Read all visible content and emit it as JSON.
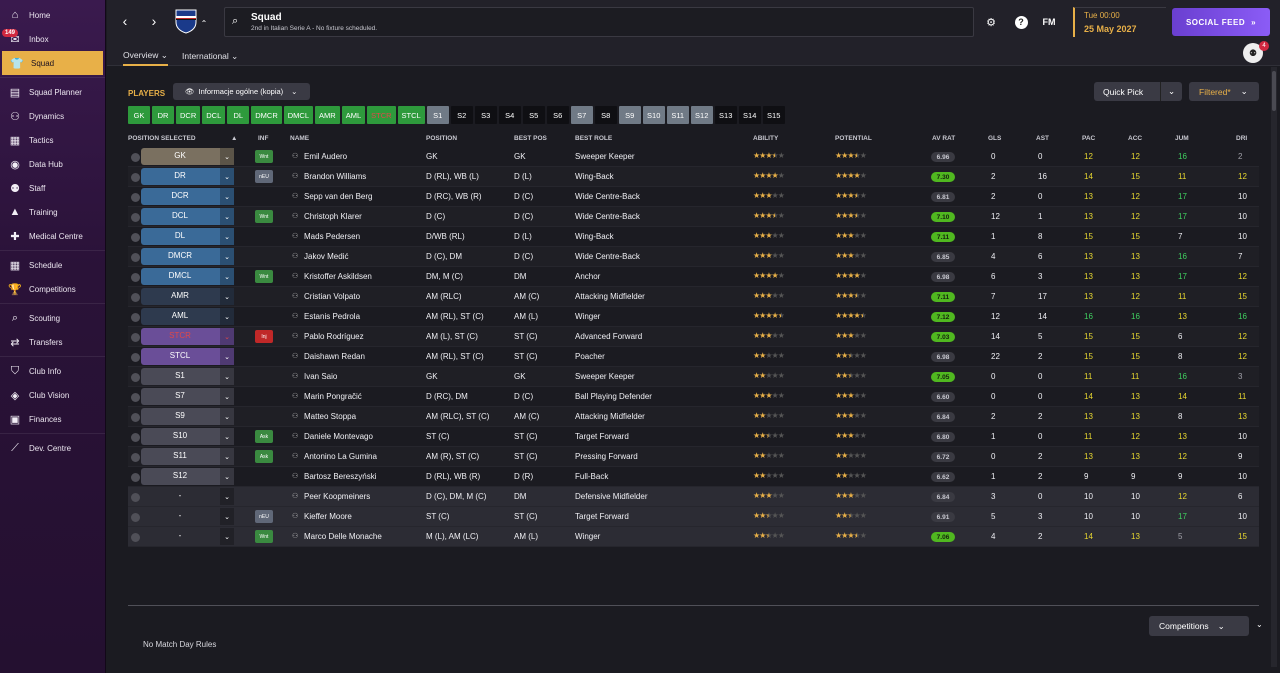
{
  "sidebar": {
    "items": [
      {
        "label": "Home",
        "icon": "home-icon",
        "glyph": "⌂"
      },
      {
        "label": "Inbox",
        "icon": "inbox-icon",
        "glyph": "✉",
        "badge": "149"
      },
      {
        "label": "Squad",
        "icon": "shirt-icon",
        "glyph": "👕",
        "active": true
      },
      {
        "label": "Squad Planner",
        "icon": "planner-icon",
        "glyph": "▤"
      },
      {
        "label": "Dynamics",
        "icon": "dynamics-icon",
        "glyph": "⚇"
      },
      {
        "label": "Tactics",
        "icon": "tactics-icon",
        "glyph": "▦"
      },
      {
        "label": "Data Hub",
        "icon": "datahub-icon",
        "glyph": "◉"
      },
      {
        "label": "Staff",
        "icon": "staff-icon",
        "glyph": "⚉"
      },
      {
        "label": "Training",
        "icon": "training-icon",
        "glyph": "▲"
      },
      {
        "label": "Medical Centre",
        "icon": "medical-icon",
        "glyph": "✚"
      },
      {
        "label": "Schedule",
        "icon": "calendar-icon",
        "glyph": "▦"
      },
      {
        "label": "Competitions",
        "icon": "trophy-icon",
        "glyph": "🏆"
      },
      {
        "label": "Scouting",
        "icon": "scouting-icon",
        "glyph": "⌕"
      },
      {
        "label": "Transfers",
        "icon": "transfers-icon",
        "glyph": "⇄"
      },
      {
        "label": "Club Info",
        "icon": "shield-icon",
        "glyph": "⛉"
      },
      {
        "label": "Club Vision",
        "icon": "vision-icon",
        "glyph": "◈"
      },
      {
        "label": "Finances",
        "icon": "finances-icon",
        "glyph": "▣"
      },
      {
        "label": "Dev. Centre",
        "icon": "dev-centre-icon",
        "glyph": "⟋"
      }
    ]
  },
  "header": {
    "title": "Squad",
    "subtitle": "2nd in Italian Serie A - No fixture scheduled.",
    "time": "Tue 00:00",
    "date": "25 May 2027",
    "social_feed": "SOCIAL FEED",
    "fm_label": "FM",
    "help_label": "?",
    "avatar_badge": "4"
  },
  "tabs": [
    {
      "label": "Overview ⌄"
    },
    {
      "label": "International ⌄"
    }
  ],
  "toolbar": {
    "players_title": "PLAYERS",
    "view_label": "Informacje ogólne (kopia)",
    "quick_pick": "Quick Pick",
    "filtered": "Filtered*"
  },
  "position_buttons": [
    {
      "label": "GK",
      "style": "g"
    },
    {
      "label": "DR",
      "style": "g"
    },
    {
      "label": "DCR",
      "style": "g"
    },
    {
      "label": "DCL",
      "style": "g"
    },
    {
      "label": "DL",
      "style": "g"
    },
    {
      "label": "DMCR",
      "style": "g"
    },
    {
      "label": "DMCL",
      "style": "g"
    },
    {
      "label": "AMR",
      "style": "g"
    },
    {
      "label": "AML",
      "style": "g"
    },
    {
      "label": "STCR",
      "style": "g red"
    },
    {
      "label": "STCL",
      "style": "g"
    },
    {
      "label": "S1",
      "style": "gr"
    },
    {
      "label": "S2",
      "style": "dk"
    },
    {
      "label": "S3",
      "style": "dk"
    },
    {
      "label": "S4",
      "style": "dk"
    },
    {
      "label": "S5",
      "style": "dk"
    },
    {
      "label": "S6",
      "style": "dk"
    },
    {
      "label": "S7",
      "style": "gr"
    },
    {
      "label": "S8",
      "style": "dk"
    },
    {
      "label": "S9",
      "style": "gr"
    },
    {
      "label": "S10",
      "style": "gr"
    },
    {
      "label": "S11",
      "style": "gr"
    },
    {
      "label": "S12",
      "style": "gr"
    },
    {
      "label": "S13",
      "style": "dk"
    },
    {
      "label": "S14",
      "style": "dk"
    },
    {
      "label": "S15",
      "style": "dk"
    }
  ],
  "columns": {
    "position_selected": "POSITION SELECTED",
    "inf": "INF",
    "name": "NAME",
    "position": "POSITION",
    "best_pos": "BEST POS",
    "best_role": "BEST ROLE",
    "ability": "ABILITY",
    "potential": "POTENTIAL",
    "av_rat": "AV RAT",
    "gls": "GLS",
    "ast": "AST",
    "pac": "PAC",
    "acc": "ACC",
    "jum": "JUM",
    "dri": "DRI"
  },
  "players": [
    {
      "sel": "GK",
      "selcolor": "#7a7060",
      "inf": "Wnt",
      "infcolor": "#3a8a40",
      "name": "Emil Audero",
      "position": "GK",
      "best_pos": "GK",
      "role": "Sweeper Keeper",
      "ability": 3.5,
      "potential": 3.5,
      "avrat": "6.96",
      "avgreen": false,
      "gls": "0",
      "ast": "0",
      "pac": "12",
      "pacc": "yel",
      "acc": "12",
      "accc": "yel",
      "jum": "16",
      "jumc": "grn",
      "dri": "2",
      "dric": "gry"
    },
    {
      "sel": "DR",
      "selcolor": "#3a6a98",
      "inf": "nEU",
      "infcolor": "#606878",
      "name": "Brandon Williams",
      "position": "D (RL), WB (L)",
      "best_pos": "D (L)",
      "role": "Wing-Back",
      "ability": 4,
      "potential": 4,
      "avrat": "7.30",
      "avgreen": true,
      "gls": "2",
      "ast": "16",
      "pac": "14",
      "pacc": "yel",
      "acc": "15",
      "accc": "yel",
      "jum": "11",
      "jumc": "yel",
      "dri": "12",
      "dric": "yel"
    },
    {
      "sel": "DCR",
      "selcolor": "#3a6a98",
      "inf": "",
      "infcolor": "",
      "name": "Sepp van den Berg",
      "position": "D (RC), WB (R)",
      "best_pos": "D (C)",
      "role": "Wide Centre-Back",
      "ability": 3,
      "potential": 3.5,
      "avrat": "6.81",
      "avgreen": false,
      "gls": "2",
      "ast": "0",
      "pac": "13",
      "pacc": "yel",
      "acc": "12",
      "accc": "yel",
      "jum": "17",
      "jumc": "grn",
      "dri": "10",
      "dric": "wht"
    },
    {
      "sel": "DCL",
      "selcolor": "#3a6a98",
      "inf": "Wnt",
      "infcolor": "#3a8a40",
      "name": "Christoph Klarer",
      "position": "D (C)",
      "best_pos": "D (C)",
      "role": "Wide Centre-Back",
      "ability": 3.5,
      "potential": 3.5,
      "avrat": "7.10",
      "avgreen": true,
      "gls": "12",
      "ast": "1",
      "pac": "13",
      "pacc": "yel",
      "acc": "12",
      "accc": "yel",
      "jum": "17",
      "jumc": "grn",
      "dri": "10",
      "dric": "wht"
    },
    {
      "sel": "DL",
      "selcolor": "#3a6a98",
      "inf": "",
      "infcolor": "",
      "name": "Mads Pedersen",
      "position": "D/WB (RL)",
      "best_pos": "D (L)",
      "role": "Wing-Back",
      "ability": 3,
      "potential": 3,
      "avrat": "7.11",
      "avgreen": true,
      "gls": "1",
      "ast": "8",
      "pac": "15",
      "pacc": "yel",
      "acc": "15",
      "accc": "yel",
      "jum": "7",
      "jumc": "wht",
      "dri": "10",
      "dric": "wht"
    },
    {
      "sel": "DMCR",
      "selcolor": "#3a6a98",
      "inf": "",
      "infcolor": "",
      "name": "Jakov Medić",
      "position": "D (C), DM",
      "best_pos": "D (C)",
      "role": "Wide Centre-Back",
      "ability": 3,
      "potential": 3,
      "avrat": "6.85",
      "avgreen": false,
      "gls": "4",
      "ast": "6",
      "pac": "13",
      "pacc": "yel",
      "acc": "13",
      "accc": "yel",
      "jum": "16",
      "jumc": "grn",
      "dri": "7",
      "dric": "wht"
    },
    {
      "sel": "DMCL",
      "selcolor": "#3a6a98",
      "inf": "Wnt",
      "infcolor": "#3a8a40",
      "name": "Kristoffer Askildsen",
      "position": "DM, M (C)",
      "best_pos": "DM",
      "role": "Anchor",
      "ability": 4,
      "potential": 4,
      "avrat": "6.98",
      "avgreen": false,
      "gls": "6",
      "ast": "3",
      "pac": "13",
      "pacc": "yel",
      "acc": "13",
      "accc": "yel",
      "jum": "17",
      "jumc": "grn",
      "dri": "12",
      "dric": "yel"
    },
    {
      "sel": "AMR",
      "selcolor": "#2e3a4e",
      "inf": "",
      "infcolor": "",
      "name": "Cristian Volpato",
      "position": "AM (RLC)",
      "best_pos": "AM (C)",
      "role": "Attacking Midfielder",
      "ability": 3,
      "potential": 3.5,
      "avrat": "7.11",
      "avgreen": true,
      "gls": "7",
      "ast": "17",
      "pac": "13",
      "pacc": "yel",
      "acc": "12",
      "accc": "yel",
      "jum": "11",
      "jumc": "yel",
      "dri": "15",
      "dric": "yel"
    },
    {
      "sel": "AML",
      "selcolor": "#2e3a4e",
      "inf": "",
      "infcolor": "",
      "name": "Estanis Pedrola",
      "position": "AM (RL), ST (C)",
      "best_pos": "AM (L)",
      "role": "Winger",
      "ability": 4.5,
      "potential": 4.5,
      "avrat": "7.12",
      "avgreen": true,
      "gls": "12",
      "ast": "14",
      "pac": "16",
      "pacc": "grn",
      "acc": "16",
      "accc": "grn",
      "jum": "13",
      "jumc": "yel",
      "dri": "16",
      "dric": "grn"
    },
    {
      "sel": "STCR",
      "selcolor": "#6a4e98",
      "inf": "Inj",
      "infcolor": "#c02828",
      "name": "Pablo Rodríguez",
      "position": "AM (L), ST (C)",
      "best_pos": "ST (C)",
      "role": "Advanced Forward",
      "ability": 3,
      "potential": 3,
      "avrat": "7.03",
      "avgreen": true,
      "gls": "14",
      "ast": "5",
      "pac": "15",
      "pacc": "yel",
      "acc": "15",
      "accc": "yel",
      "jum": "6",
      "jumc": "wht",
      "dri": "12",
      "dric": "yel"
    },
    {
      "sel": "STCL",
      "selcolor": "#6a4e98",
      "inf": "",
      "infcolor": "",
      "name": "Daishawn Redan",
      "position": "AM (RL), ST (C)",
      "best_pos": "ST (C)",
      "role": "Poacher",
      "ability": 2,
      "potential": 2.5,
      "avrat": "6.98",
      "avgreen": false,
      "gls": "22",
      "ast": "2",
      "pac": "15",
      "pacc": "yel",
      "acc": "15",
      "accc": "yel",
      "jum": "8",
      "jumc": "wht",
      "dri": "12",
      "dric": "yel"
    },
    {
      "sel": "S1",
      "selcolor": "#4a4a56",
      "inf": "",
      "infcolor": "",
      "name": "Ivan Saio",
      "position": "GK",
      "best_pos": "GK",
      "role": "Sweeper Keeper",
      "ability": 2,
      "potential": 2.5,
      "avrat": "7.05",
      "avgreen": true,
      "gls": "0",
      "ast": "0",
      "pac": "11",
      "pacc": "yel",
      "acc": "11",
      "accc": "yel",
      "jum": "16",
      "jumc": "grn",
      "dri": "3",
      "dric": "gry"
    },
    {
      "sel": "S7",
      "selcolor": "#4a4a56",
      "inf": "",
      "infcolor": "",
      "name": "Marin Pongračić",
      "position": "D (RC), DM",
      "best_pos": "D (C)",
      "role": "Ball Playing Defender",
      "ability": 3,
      "potential": 3,
      "avrat": "6.60",
      "avgreen": false,
      "gls": "0",
      "ast": "0",
      "pac": "14",
      "pacc": "yel",
      "acc": "13",
      "accc": "yel",
      "jum": "14",
      "jumc": "yel",
      "dri": "11",
      "dric": "yel"
    },
    {
      "sel": "S9",
      "selcolor": "#4a4a56",
      "inf": "",
      "infcolor": "",
      "name": "Matteo Stoppa",
      "position": "AM (RLC), ST (C)",
      "best_pos": "AM (C)",
      "role": "Attacking Midfielder",
      "ability": 2,
      "potential": 3,
      "avrat": "6.84",
      "avgreen": false,
      "gls": "2",
      "ast": "2",
      "pac": "13",
      "pacc": "yel",
      "acc": "13",
      "accc": "yel",
      "jum": "8",
      "jumc": "wht",
      "dri": "13",
      "dric": "yel"
    },
    {
      "sel": "S10",
      "selcolor": "#4a4a56",
      "inf": "Ask",
      "infcolor": "#3a8a40",
      "name": "Daniele Montevago",
      "position": "ST (C)",
      "best_pos": "ST (C)",
      "role": "Target Forward",
      "ability": 2.5,
      "potential": 3,
      "avrat": "6.80",
      "avgreen": false,
      "gls": "1",
      "ast": "0",
      "pac": "11",
      "pacc": "yel",
      "acc": "12",
      "accc": "yel",
      "jum": "13",
      "jumc": "yel",
      "dri": "10",
      "dric": "wht"
    },
    {
      "sel": "S11",
      "selcolor": "#4a4a56",
      "inf": "Ask",
      "infcolor": "#3a8a40",
      "name": "Antonino La Gumina",
      "position": "AM (R), ST (C)",
      "best_pos": "ST (C)",
      "role": "Pressing Forward",
      "ability": 2,
      "potential": 2,
      "avrat": "6.72",
      "avgreen": false,
      "gls": "0",
      "ast": "2",
      "pac": "13",
      "pacc": "yel",
      "acc": "13",
      "accc": "yel",
      "jum": "12",
      "jumc": "yel",
      "dri": "9",
      "dric": "wht"
    },
    {
      "sel": "S12",
      "selcolor": "#4a4a56",
      "inf": "",
      "infcolor": "",
      "name": "Bartosz Bereszyński",
      "position": "D (RL), WB (R)",
      "best_pos": "D (R)",
      "role": "Full-Back",
      "ability": 2,
      "potential": 2,
      "avrat": "6.62",
      "avgreen": false,
      "gls": "1",
      "ast": "2",
      "pac": "9",
      "pacc": "wht",
      "acc": "9",
      "accc": "wht",
      "jum": "9",
      "jumc": "wht",
      "dri": "10",
      "dric": "wht"
    },
    {
      "sel": "-",
      "selcolor": "#2c2c34",
      "inf": "",
      "infcolor": "",
      "name": "Peer Koopmeiners",
      "position": "D (C), DM, M (C)",
      "best_pos": "DM",
      "role": "Defensive Midfielder",
      "ability": 3,
      "potential": 3,
      "avrat": "6.84",
      "avgreen": false,
      "gls": "3",
      "ast": "0",
      "pac": "10",
      "pacc": "wht",
      "acc": "10",
      "accc": "wht",
      "jum": "12",
      "jumc": "yel",
      "dri": "6",
      "dric": "wht"
    },
    {
      "sel": "-",
      "selcolor": "#2c2c34",
      "inf": "nEU",
      "infcolor": "#606878",
      "name": "Kieffer Moore",
      "position": "ST (C)",
      "best_pos": "ST (C)",
      "role": "Target Forward",
      "ability": 2.5,
      "potential": 2.5,
      "avrat": "6.91",
      "avgreen": false,
      "gls": "5",
      "ast": "3",
      "pac": "10",
      "pacc": "wht",
      "acc": "10",
      "accc": "wht",
      "jum": "17",
      "jumc": "grn",
      "dri": "10",
      "dric": "wht"
    },
    {
      "sel": "-",
      "selcolor": "#2c2c34",
      "inf": "Wnt",
      "infcolor": "#3a8a40",
      "name": "Marco Delle Monache",
      "position": "M (L), AM (LC)",
      "best_pos": "AM (L)",
      "role": "Winger",
      "ability": 2.5,
      "potential": 3.5,
      "avrat": "7.06",
      "avgreen": true,
      "gls": "4",
      "ast": "2",
      "pac": "14",
      "pacc": "yel",
      "acc": "13",
      "accc": "yel",
      "jum": "5",
      "jumc": "gry",
      "dri": "15",
      "dric": "yel"
    }
  ],
  "footer": {
    "competitions": "Competitions",
    "no_match_rules": "No Match Day Rules"
  }
}
